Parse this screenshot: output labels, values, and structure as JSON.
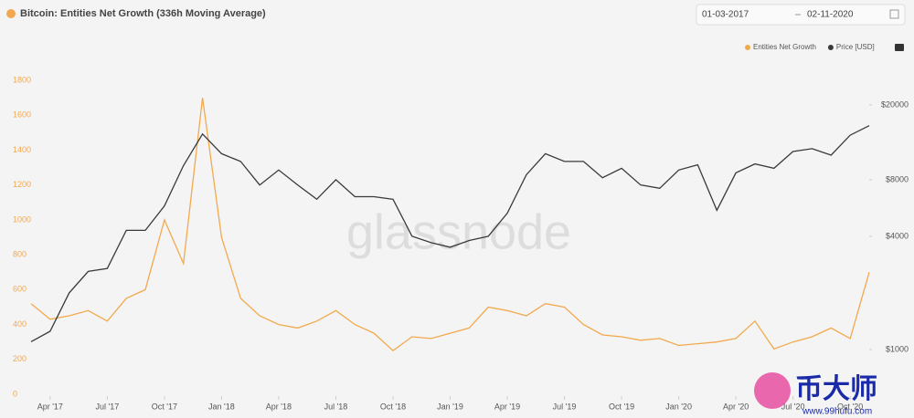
{
  "chart_data": {
    "type": "line",
    "title": "Bitcoin: Entities Net Growth (336h Moving Average)",
    "date_range": {
      "start": "01-03-2017",
      "end": "02-11-2020"
    },
    "watermark": "glassnode",
    "overlay_logo": {
      "name": "币大师",
      "url": "www.99hufu.com"
    },
    "x": [
      "2017-03",
      "2017-04",
      "2017-05",
      "2017-06",
      "2017-07",
      "2017-08",
      "2017-09",
      "2017-10",
      "2017-11",
      "2017-12",
      "2018-01",
      "2018-02",
      "2018-03",
      "2018-04",
      "2018-05",
      "2018-06",
      "2018-07",
      "2018-08",
      "2018-09",
      "2018-10",
      "2018-11",
      "2018-12",
      "2019-01",
      "2019-02",
      "2019-03",
      "2019-04",
      "2019-05",
      "2019-06",
      "2019-07",
      "2019-08",
      "2019-09",
      "2019-10",
      "2019-11",
      "2019-12",
      "2020-01",
      "2020-02",
      "2020-03",
      "2020-04",
      "2020-05",
      "2020-06",
      "2020-07",
      "2020-08",
      "2020-09",
      "2020-10",
      "2020-11"
    ],
    "xlim": [
      "2017-03",
      "2020-11"
    ],
    "xticks": [
      {
        "value": "2017-04",
        "label": "Apr '17"
      },
      {
        "value": "2017-07",
        "label": "Jul '17"
      },
      {
        "value": "2017-10",
        "label": "Oct '17"
      },
      {
        "value": "2018-01",
        "label": "Jan '18"
      },
      {
        "value": "2018-04",
        "label": "Apr '18"
      },
      {
        "value": "2018-07",
        "label": "Jul '18"
      },
      {
        "value": "2018-10",
        "label": "Oct '18"
      },
      {
        "value": "2019-01",
        "label": "Jan '19"
      },
      {
        "value": "2019-04",
        "label": "Apr '19"
      },
      {
        "value": "2019-07",
        "label": "Jul '19"
      },
      {
        "value": "2019-10",
        "label": "Oct '19"
      },
      {
        "value": "2020-01",
        "label": "Jan '20"
      },
      {
        "value": "2020-04",
        "label": "Apr '20"
      },
      {
        "value": "2020-07",
        "label": "Jul '20"
      },
      {
        "value": "2020-10",
        "label": "Oct '20"
      }
    ],
    "ylim": [
      0,
      1900
    ],
    "yticks": [
      0,
      200,
      400,
      600,
      800,
      1000,
      1200,
      1400,
      1600,
      1800
    ],
    "y2lim": [
      578,
      33400
    ],
    "y2scale": "log",
    "y2ticks": [
      {
        "value": 1000,
        "label": "$1000"
      },
      {
        "value": 4000,
        "label": "$4000"
      },
      {
        "value": 8000,
        "label": "$8000"
      },
      {
        "value": 20000,
        "label": "$20000"
      }
    ],
    "grid": false,
    "legend": "top-right",
    "series": [
      {
        "name": "Entities Net Growth",
        "color": "#f2a94e",
        "axis": "y",
        "values": [
          520,
          430,
          450,
          480,
          420,
          550,
          600,
          1000,
          750,
          1700,
          900,
          550,
          450,
          400,
          380,
          420,
          480,
          400,
          350,
          250,
          330,
          320,
          350,
          380,
          500,
          480,
          450,
          520,
          500,
          400,
          340,
          330,
          310,
          320,
          280,
          290,
          300,
          320,
          420,
          260,
          300,
          330,
          380,
          320,
          700
        ]
      },
      {
        "name": "Price [USD]",
        "color": "#3a3a3a",
        "axis": "y2",
        "values": [
          1100,
          1250,
          2000,
          2600,
          2700,
          4300,
          4300,
          5800,
          9500,
          14000,
          11000,
          10000,
          7500,
          9000,
          7500,
          6300,
          8000,
          6500,
          6500,
          6300,
          4000,
          3700,
          3500,
          3800,
          4000,
          5300,
          8500,
          11000,
          10000,
          10000,
          8200,
          9200,
          7500,
          7200,
          9000,
          9600,
          5500,
          8700,
          9700,
          9200,
          11300,
          11700,
          10800,
          13800,
          15500
        ]
      }
    ]
  }
}
